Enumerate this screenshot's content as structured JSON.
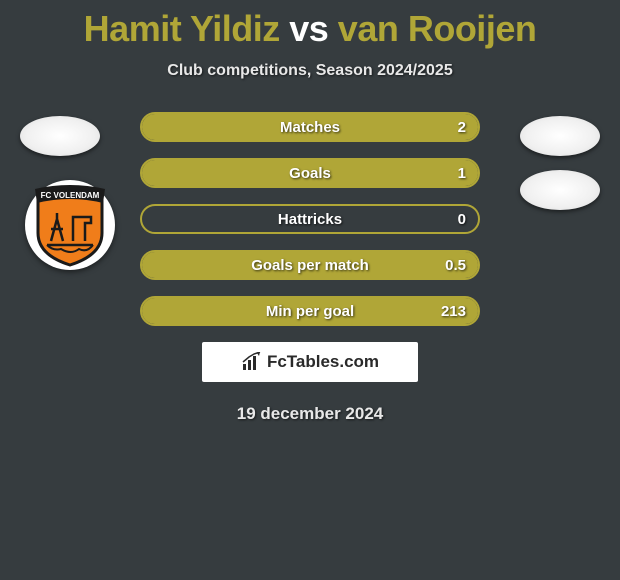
{
  "title": {
    "player1": "Hamit Yildiz",
    "vs": "vs",
    "player2": "van Rooijen",
    "color1": "#b0a637",
    "color_vs": "#ffffff",
    "color2": "#b0a637"
  },
  "subtitle": "Club competitions, Season 2024/2025",
  "stats": {
    "border_color": "#b0a637",
    "fill_color": "#b0a637",
    "rows": [
      {
        "label": "Matches",
        "left": "",
        "right": "2",
        "fill_left_pct": 0,
        "fill_right_pct": 100
      },
      {
        "label": "Goals",
        "left": "",
        "right": "1",
        "fill_left_pct": 0,
        "fill_right_pct": 100
      },
      {
        "label": "Hattricks",
        "left": "",
        "right": "0",
        "fill_left_pct": 0,
        "fill_right_pct": 0
      },
      {
        "label": "Goals per match",
        "left": "",
        "right": "0.5",
        "fill_left_pct": 0,
        "fill_right_pct": 100
      },
      {
        "label": "Min per goal",
        "left": "",
        "right": "213",
        "fill_left_pct": 0,
        "fill_right_pct": 100
      }
    ]
  },
  "club_badge": {
    "name": "FC VOLENDAM",
    "shield_fill": "#f07d1a",
    "shield_stroke": "#1a1a1a",
    "banner_fill": "#1a1a1a",
    "banner_text_color": "#ffffff"
  },
  "branding": {
    "text": "FcTables.com",
    "icon_color": "#2a2a2a"
  },
  "footer_date": "19 december 2024",
  "colors": {
    "background": "#363c3f",
    "avatar_bg": "#ffffff"
  }
}
